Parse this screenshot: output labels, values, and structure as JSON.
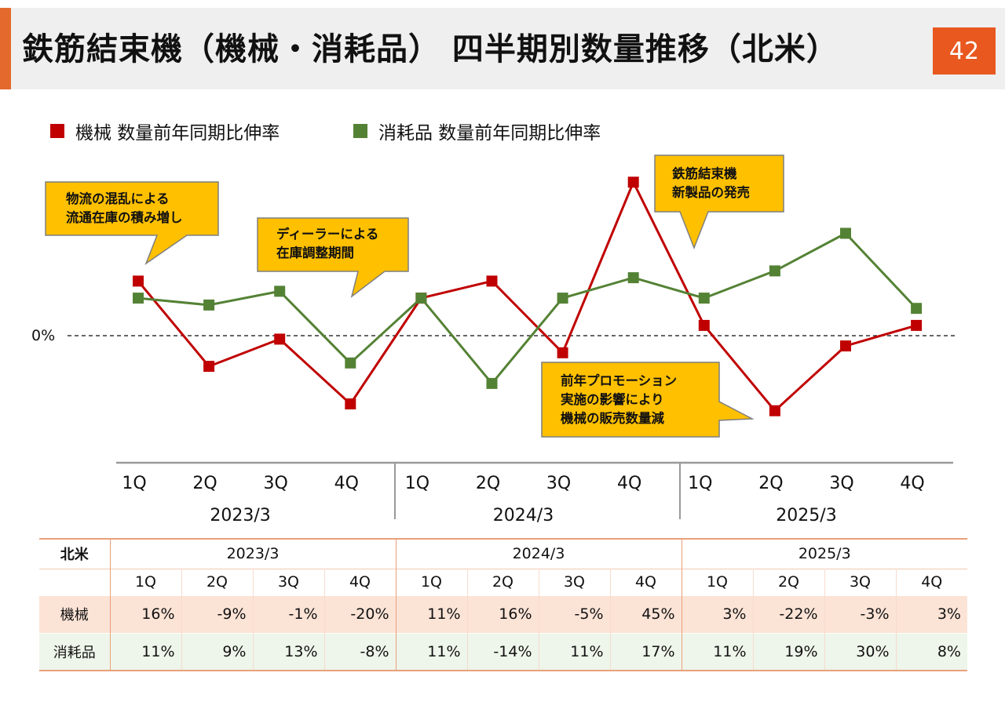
{
  "header": {
    "title": "鉄筋結束機（機械・消耗品） 四半期別数量推移（北米）",
    "page_number": "42",
    "accent_color": "#e36a2c"
  },
  "legend": {
    "machine": "機械 数量前年同期比伸率",
    "consumable": "消耗品 数量前年同期比伸率"
  },
  "zero_label": "0%",
  "callouts": {
    "logistics": [
      "物流の混乱による",
      "流通在庫の積み増し"
    ],
    "dealer": [
      "ディーラーによる",
      "在庫調整期間"
    ],
    "new_product": [
      "鉄筋結束機",
      "新製品の発売"
    ],
    "promotion": [
      "前年プロモーション",
      "実施の影響により",
      "機械の販売数量減"
    ]
  },
  "chart_data": {
    "type": "line",
    "years": [
      "2023/3",
      "2024/3",
      "2025/3"
    ],
    "quarters": [
      "1Q",
      "2Q",
      "3Q",
      "4Q"
    ],
    "categories": [
      "1Q",
      "2Q",
      "3Q",
      "4Q",
      "1Q",
      "2Q",
      "3Q",
      "4Q",
      "1Q",
      "2Q",
      "3Q",
      "4Q"
    ],
    "series": [
      {
        "name": "機械 数量前年同期比伸率",
        "color": "#c00000",
        "values": [
          16,
          -9,
          -1,
          -20,
          11,
          16,
          -5,
          45,
          3,
          -22,
          -3,
          3
        ]
      },
      {
        "name": "消耗品 数量前年同期比伸率",
        "color": "#548235",
        "values": [
          11,
          9,
          13,
          -8,
          11,
          -14,
          11,
          17,
          11,
          19,
          30,
          8
        ]
      }
    ],
    "unit": "%",
    "zero_line": "dashed",
    "legend_position": "top-left"
  },
  "table": {
    "region_label": "北米",
    "years": [
      "2023/3",
      "2024/3",
      "2025/3"
    ],
    "quarters": [
      "1Q",
      "2Q",
      "3Q",
      "4Q",
      "1Q",
      "2Q",
      "3Q",
      "4Q",
      "1Q",
      "2Q",
      "3Q",
      "4Q"
    ],
    "rows": [
      {
        "label": "機械",
        "values": [
          "16%",
          "-9%",
          "-1%",
          "-20%",
          "11%",
          "16%",
          "-5%",
          "45%",
          "3%",
          "-22%",
          "-3%",
          "3%"
        ]
      },
      {
        "label": "消耗品",
        "values": [
          "11%",
          "9%",
          "13%",
          "-8%",
          "11%",
          "-14%",
          "11%",
          "17%",
          "11%",
          "19%",
          "30%",
          "8%"
        ]
      }
    ]
  }
}
